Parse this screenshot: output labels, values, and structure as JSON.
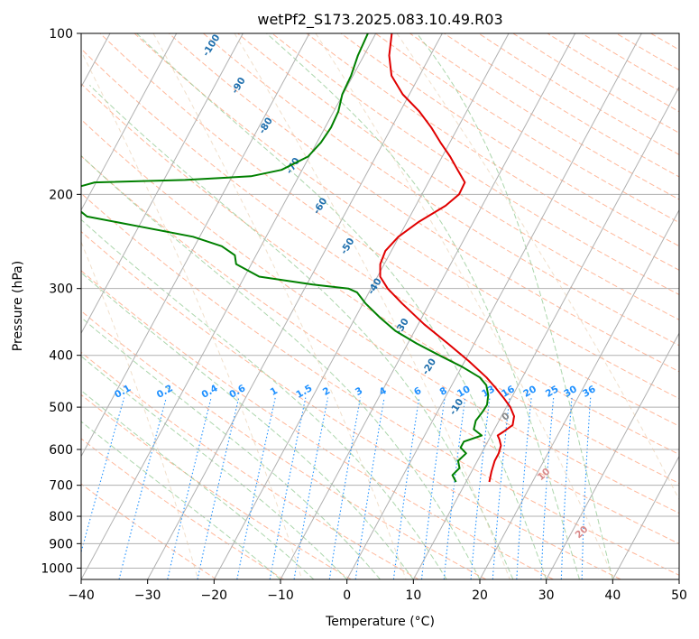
{
  "chart_data": {
    "type": "line",
    "title": "wetPf2_S173.2025.083.10.49.R03",
    "xlabel": "Temperature (°C)",
    "ylabel": "Pressure (hPa)",
    "xlim": [
      -40,
      50
    ],
    "ylim": [
      1050,
      100
    ],
    "yscale": "log",
    "grid": true,
    "x_ticks": [
      "−40",
      "−30",
      "−20",
      "−10",
      "0",
      "10",
      "20",
      "30",
      "40",
      "50"
    ],
    "y_ticks": [
      "100",
      "200",
      "300",
      "400",
      "500",
      "600",
      "700",
      "800",
      "900",
      "1000"
    ],
    "colors": {
      "temperature": "#e00000",
      "dewpoint": "#008000",
      "isotherm_labels": "#1f6fad",
      "mixing_ratio": "#1e90ff",
      "dry_adiabat": "#ffa07a",
      "moist_adiabat": "#90c890",
      "grid": "#b0b0b0",
      "theta_e": "#d98a8a"
    },
    "series": [
      {
        "key": "temperature",
        "points": [
          {
            "p": 690,
            "t": 13.5
          },
          {
            "p": 660,
            "t": 13.0
          },
          {
            "p": 630,
            "t": 12.6
          },
          {
            "p": 610,
            "t": 12.6
          },
          {
            "p": 590,
            "t": 12.3
          },
          {
            "p": 575,
            "t": 11.6
          },
          {
            "p": 565,
            "t": 11.0
          },
          {
            "p": 555,
            "t": 11.6
          },
          {
            "p": 540,
            "t": 12.4
          },
          {
            "p": 520,
            "t": 11.9
          },
          {
            "p": 500,
            "t": 10.6
          },
          {
            "p": 480,
            "t": 8.8
          },
          {
            "p": 460,
            "t": 6.8
          },
          {
            "p": 440,
            "t": 4.6
          },
          {
            "p": 410,
            "t": 0.6
          },
          {
            "p": 380,
            "t": -4.0
          },
          {
            "p": 350,
            "t": -9.1
          },
          {
            "p": 320,
            "t": -14.1
          },
          {
            "p": 300,
            "t": -17.5
          },
          {
            "p": 285,
            "t": -19.6
          },
          {
            "p": 270,
            "t": -20.6
          },
          {
            "p": 255,
            "t": -20.9
          },
          {
            "p": 240,
            "t": -20.1
          },
          {
            "p": 225,
            "t": -18.2
          },
          {
            "p": 210,
            "t": -15.5
          },
          {
            "p": 200,
            "t": -14.4
          },
          {
            "p": 190,
            "t": -14.5
          },
          {
            "p": 180,
            "t": -16.6
          },
          {
            "p": 170,
            "t": -18.8
          },
          {
            "p": 160,
            "t": -21.4
          },
          {
            "p": 150,
            "t": -24.0
          },
          {
            "p": 140,
            "t": -27.1
          },
          {
            "p": 130,
            "t": -31.0
          },
          {
            "p": 120,
            "t": -34.2
          },
          {
            "p": 110,
            "t": -36.2
          },
          {
            "p": 100,
            "t": -37.6
          }
        ]
      },
      {
        "key": "dewpoint",
        "points": [
          {
            "p": 690,
            "t": 8.5
          },
          {
            "p": 670,
            "t": 7.4
          },
          {
            "p": 650,
            "t": 7.9
          },
          {
            "p": 630,
            "t": 7.1
          },
          {
            "p": 610,
            "t": 7.7
          },
          {
            "p": 595,
            "t": 6.4
          },
          {
            "p": 580,
            "t": 6.4
          },
          {
            "p": 565,
            "t": 8.6
          },
          {
            "p": 550,
            "t": 6.9
          },
          {
            "p": 530,
            "t": 6.5
          },
          {
            "p": 510,
            "t": 6.8
          },
          {
            "p": 495,
            "t": 6.9
          },
          {
            "p": 475,
            "t": 6.3
          },
          {
            "p": 455,
            "t": 5.2
          },
          {
            "p": 440,
            "t": 3.6
          },
          {
            "p": 420,
            "t": 0.0
          },
          {
            "p": 400,
            "t": -4.3
          },
          {
            "p": 380,
            "t": -8.7
          },
          {
            "p": 360,
            "t": -12.9
          },
          {
            "p": 340,
            "t": -16.3
          },
          {
            "p": 320,
            "t": -19.6
          },
          {
            "p": 305,
            "t": -21.8
          },
          {
            "p": 300,
            "t": -23.4
          },
          {
            "p": 295,
            "t": -29.1
          },
          {
            "p": 285,
            "t": -37.8
          },
          {
            "p": 270,
            "t": -42.3
          },
          {
            "p": 260,
            "t": -43.2
          },
          {
            "p": 250,
            "t": -45.9
          },
          {
            "p": 240,
            "t": -51.0
          },
          {
            "p": 230,
            "t": -59.6
          },
          {
            "p": 220,
            "t": -68.6
          },
          {
            "p": 210,
            "t": -71.5
          },
          {
            "p": 195,
            "t": -73.0
          },
          {
            "p": 190,
            "t": -70.2
          },
          {
            "p": 188,
            "t": -56.8
          },
          {
            "p": 185,
            "t": -47.2
          },
          {
            "p": 180,
            "t": -43.1
          },
          {
            "p": 170,
            "t": -40.2
          },
          {
            "p": 160,
            "t": -39.4
          },
          {
            "p": 150,
            "t": -39.1
          },
          {
            "p": 140,
            "t": -39.3
          },
          {
            "p": 130,
            "t": -40.1
          },
          {
            "p": 120,
            "t": -40.3
          },
          {
            "p": 110,
            "t": -40.9
          },
          {
            "p": 100,
            "t": -41.2
          }
        ]
      }
    ],
    "isotherm_labels": [
      "-100",
      "-90",
      "-80",
      "-70",
      "-60",
      "-50",
      "-40",
      "-30",
      "-20",
      "-10"
    ],
    "mixing_ratio_labels": [
      "0.1",
      "0.2",
      "0.4",
      "0.6",
      "1",
      "1.5",
      "2",
      "3",
      "4",
      "6",
      "8",
      "10",
      "13",
      "16",
      "20",
      "25",
      "30",
      "36"
    ],
    "theta_e_labels": [
      "0",
      "10",
      "20",
      "30",
      "40"
    ]
  }
}
